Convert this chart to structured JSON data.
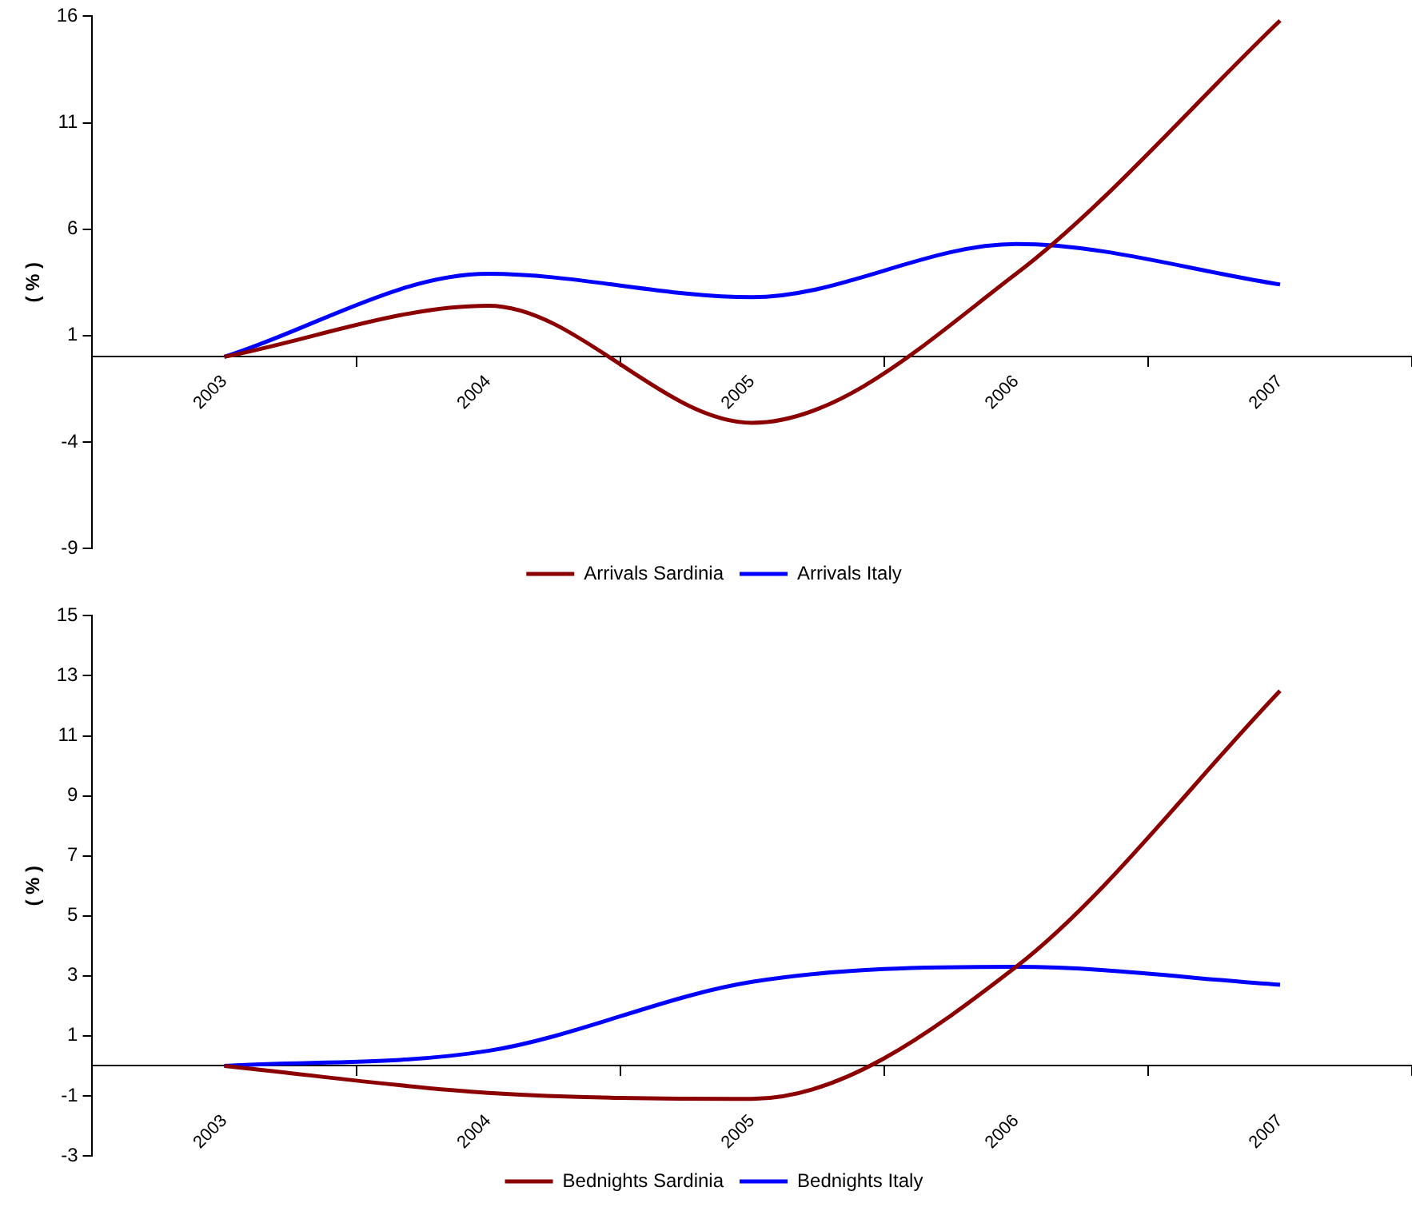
{
  "chart_data": [
    {
      "type": "line",
      "ylabel": "( % )",
      "categories": [
        "2003",
        "2004",
        "2005",
        "2006",
        "2007"
      ],
      "ylim": [
        -9,
        16
      ],
      "yticks": [
        -9,
        -4,
        1,
        6,
        11,
        16
      ],
      "grid": false,
      "legend": "bottom",
      "line_style": "solid",
      "marker": "none",
      "series": [
        {
          "name": "Arrivals Sardinia",
          "color": "#8b0000",
          "values": [
            0,
            2.4,
            -3.1,
            3.9,
            15.8
          ]
        },
        {
          "name": "Arrivals Italy",
          "color": "#0000ff",
          "values": [
            0,
            3.9,
            2.8,
            5.3,
            3.4
          ]
        }
      ]
    },
    {
      "type": "line",
      "ylabel": "( % )",
      "categories": [
        "2003",
        "2004",
        "2005",
        "2006",
        "2007"
      ],
      "ylim": [
        -3,
        15
      ],
      "yticks": [
        -3,
        -1,
        1,
        3,
        5,
        7,
        9,
        11,
        13,
        15
      ],
      "grid": false,
      "legend": "bottom",
      "line_style": "solid",
      "marker": "none",
      "series": [
        {
          "name": "Bednights Sardinia",
          "color": "#8b0000",
          "values": [
            0,
            -0.9,
            -1.1,
            3.3,
            12.5
          ]
        },
        {
          "name": "Bednights Italy",
          "color": "#0000ff",
          "values": [
            0,
            0.5,
            2.8,
            3.3,
            2.7
          ]
        }
      ]
    }
  ]
}
